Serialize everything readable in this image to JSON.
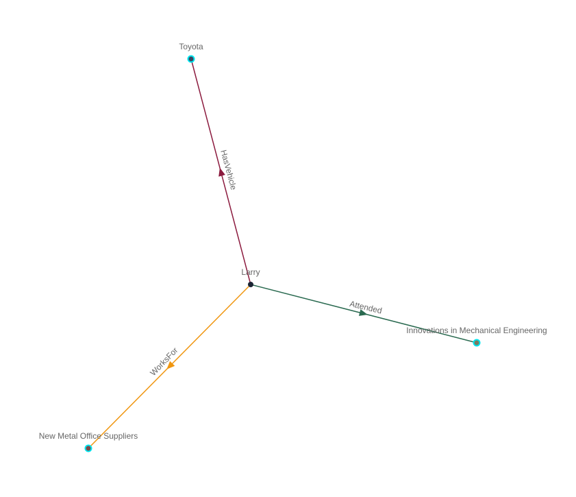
{
  "graph": {
    "nodes": [
      {
        "id": "larry",
        "label": "Larry",
        "fill": "#1b2433",
        "ring": null
      },
      {
        "id": "toyota",
        "label": "Toyota",
        "fill": "#3b4460",
        "ring": "#00e5ee"
      },
      {
        "id": "nmos",
        "label": "New Metal Office Suppliers",
        "fill": "#7a4a4a",
        "ring": "#00e5ee"
      },
      {
        "id": "innov",
        "label": "Innovations in Mechanical Engineering",
        "fill": "#7b7a60",
        "ring": "#00e5ee"
      }
    ],
    "edges": [
      {
        "source": "larry",
        "target": "toyota",
        "label": "HasVehicle",
        "color": "#8b1a3e"
      },
      {
        "source": "larry",
        "target": "innov",
        "label": "Attended",
        "color": "#2a6a50"
      },
      {
        "source": "larry",
        "target": "nmos",
        "label": "WorksFor",
        "color": "#f0960f"
      }
    ]
  }
}
